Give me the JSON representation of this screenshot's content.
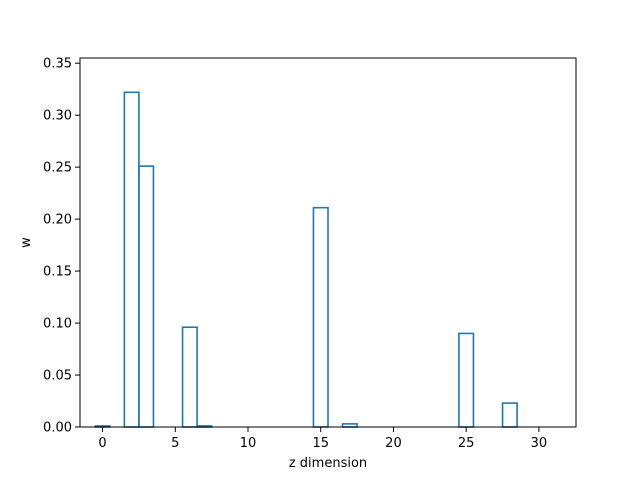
{
  "chart_data": {
    "type": "bar",
    "style": "step-outline",
    "x": [
      0,
      1,
      2,
      3,
      4,
      5,
      6,
      7,
      8,
      9,
      10,
      11,
      12,
      13,
      14,
      15,
      16,
      17,
      18,
      19,
      20,
      21,
      22,
      23,
      24,
      25,
      26,
      27,
      28,
      29,
      30,
      31
    ],
    "values": [
      0.001,
      0.0,
      0.322,
      0.251,
      0.0,
      0.0,
      0.096,
      0.001,
      0.0,
      0.0,
      0.0,
      0.0,
      0.0,
      0.0,
      0.0,
      0.211,
      0.0,
      0.003,
      0.0,
      0.0,
      0.0,
      0.0,
      0.0,
      0.0,
      0.0,
      0.09,
      0.0,
      0.0,
      0.023,
      0.0,
      0.0,
      0.0
    ],
    "xlabel": "z dimension",
    "ylabel": "w",
    "xlim": [
      -1.55,
      32.55
    ],
    "ylim": [
      0.0,
      0.355
    ],
    "xticks": [
      0,
      5,
      10,
      15,
      20,
      25,
      30
    ],
    "xtick_labels": [
      "0",
      "5",
      "10",
      "15",
      "20",
      "25",
      "30"
    ],
    "yticks": [
      0.0,
      0.05,
      0.1,
      0.15,
      0.2,
      0.25,
      0.3,
      0.35
    ],
    "ytick_labels": [
      "0.00",
      "0.05",
      "0.10",
      "0.15",
      "0.20",
      "0.25",
      "0.30",
      "0.35"
    ],
    "grid": false,
    "colors": {
      "series": "#1f77b4",
      "axes": "#000000"
    }
  }
}
